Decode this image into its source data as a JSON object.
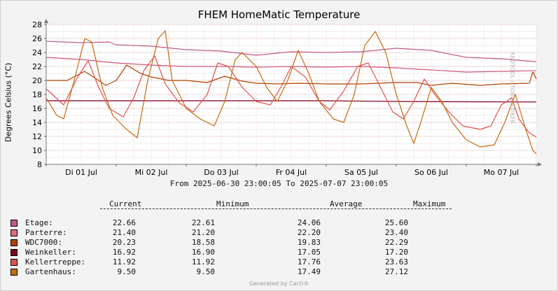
{
  "chart_data": {
    "type": "line",
    "title": "FHEM HomeMatic Temperature",
    "ylabel": "Degrees Celsius (°C)",
    "xlabel": "",
    "ylim": [
      8,
      28
    ],
    "yticks": [
      8,
      10,
      12,
      14,
      16,
      18,
      20,
      22,
      24,
      26,
      28
    ],
    "xlim": [
      0,
      7
    ],
    "xticks": [
      {
        "x": 0.5,
        "label": "Di 01 Jul"
      },
      {
        "x": 1.5,
        "label": "Mi 02 Jul"
      },
      {
        "x": 2.5,
        "label": "Do 03 Jul"
      },
      {
        "x": 3.5,
        "label": "Fr 04 Jul"
      },
      {
        "x": 4.5,
        "label": "Sa 05 Jul"
      },
      {
        "x": 5.5,
        "label": "So 06 Jul"
      },
      {
        "x": 6.5,
        "label": "Mo 07 Jul"
      }
    ],
    "grid": true,
    "range_text": "From 2025-06-30 23:00:05 To 2025-07-07 23:00:05",
    "series": [
      {
        "name": "Etage",
        "color": "#c05a8a",
        "current": "22.66",
        "minimum": "22.61",
        "average": "24.06",
        "maximum": "25.60",
        "points": [
          [
            0,
            25.6
          ],
          [
            0.5,
            25.4
          ],
          [
            0.9,
            25.5
          ],
          [
            1.0,
            25.1
          ],
          [
            1.5,
            24.9
          ],
          [
            2.0,
            24.4
          ],
          [
            2.5,
            24.2
          ],
          [
            3.0,
            23.6
          ],
          [
            3.5,
            24.1
          ],
          [
            4.0,
            24.0
          ],
          [
            4.5,
            24.1
          ],
          [
            5.0,
            24.6
          ],
          [
            5.5,
            24.3
          ],
          [
            6.0,
            23.3
          ],
          [
            6.5,
            23.1
          ],
          [
            7.0,
            22.66
          ]
        ]
      },
      {
        "name": "Parterre",
        "color": "#d05878",
        "current": "21.40",
        "minimum": "21.20",
        "average": "22.20",
        "maximum": "23.40",
        "points": [
          [
            0,
            23.3
          ],
          [
            0.5,
            23.0
          ],
          [
            1.0,
            22.5
          ],
          [
            1.5,
            22.2
          ],
          [
            2.0,
            22.0
          ],
          [
            2.5,
            22.0
          ],
          [
            3.0,
            21.9
          ],
          [
            3.5,
            22.0
          ],
          [
            4.0,
            21.9
          ],
          [
            4.5,
            22.0
          ],
          [
            5.0,
            21.8
          ],
          [
            5.5,
            21.5
          ],
          [
            6.0,
            21.2
          ],
          [
            6.5,
            21.3
          ],
          [
            7.0,
            21.4
          ]
        ]
      },
      {
        "name": "WDC7000:",
        "color": "#b14200",
        "current": "20.23",
        "minimum": "18.58",
        "average": "19.83",
        "maximum": "22.29",
        "points": [
          [
            0,
            20.0
          ],
          [
            0.3,
            20.0
          ],
          [
            0.55,
            21.3
          ],
          [
            0.75,
            20.0
          ],
          [
            0.85,
            19.3
          ],
          [
            1.0,
            20.0
          ],
          [
            1.15,
            22.2
          ],
          [
            1.35,
            21.0
          ],
          [
            1.5,
            20.5
          ],
          [
            1.75,
            20.0
          ],
          [
            2.0,
            20.0
          ],
          [
            2.3,
            19.7
          ],
          [
            2.55,
            20.6
          ],
          [
            2.8,
            19.9
          ],
          [
            3.0,
            19.6
          ],
          [
            3.3,
            19.5
          ],
          [
            3.6,
            19.6
          ],
          [
            4.0,
            19.5
          ],
          [
            4.5,
            19.5
          ],
          [
            5.0,
            19.7
          ],
          [
            5.3,
            19.7
          ],
          [
            5.5,
            19.3
          ],
          [
            5.8,
            19.6
          ],
          [
            6.2,
            19.3
          ],
          [
            6.5,
            19.5
          ],
          [
            6.9,
            19.6
          ],
          [
            6.95,
            21.2
          ],
          [
            7.0,
            20.23
          ]
        ]
      },
      {
        "name": "Weinkeller:",
        "color": "#800020",
        "current": "16.92",
        "minimum": "16.90",
        "average": "17.05",
        "maximum": "17.20",
        "points": [
          [
            0,
            17.1
          ],
          [
            1,
            17.1
          ],
          [
            2,
            17.1
          ],
          [
            3,
            17.1
          ],
          [
            4,
            17.1
          ],
          [
            5,
            17.0
          ],
          [
            6,
            16.95
          ],
          [
            7,
            16.92
          ]
        ]
      },
      {
        "name": "Kellertreppe:",
        "color": "#e35050",
        "current": "11.92",
        "minimum": "11.92",
        "average": "17.76",
        "maximum": "23.63",
        "points": [
          [
            0,
            18.8
          ],
          [
            0.25,
            16.5
          ],
          [
            0.45,
            20.5
          ],
          [
            0.6,
            22.8
          ],
          [
            0.75,
            19.0
          ],
          [
            0.9,
            16.0
          ],
          [
            1.1,
            14.8
          ],
          [
            1.25,
            17.5
          ],
          [
            1.4,
            21.5
          ],
          [
            1.55,
            23.5
          ],
          [
            1.7,
            19.5
          ],
          [
            1.9,
            16.8
          ],
          [
            2.1,
            15.5
          ],
          [
            2.3,
            18.0
          ],
          [
            2.45,
            22.5
          ],
          [
            2.6,
            22.0
          ],
          [
            2.8,
            19.0
          ],
          [
            3.0,
            17.0
          ],
          [
            3.2,
            16.5
          ],
          [
            3.35,
            19.0
          ],
          [
            3.5,
            22.0
          ],
          [
            3.7,
            20.5
          ],
          [
            3.9,
            17.0
          ],
          [
            4.05,
            15.8
          ],
          [
            4.25,
            18.5
          ],
          [
            4.45,
            22.0
          ],
          [
            4.6,
            22.5
          ],
          [
            4.75,
            19.5
          ],
          [
            4.95,
            15.5
          ],
          [
            5.1,
            14.5
          ],
          [
            5.25,
            17.0
          ],
          [
            5.4,
            20.2
          ],
          [
            5.55,
            18.0
          ],
          [
            5.75,
            15.5
          ],
          [
            5.95,
            13.5
          ],
          [
            6.2,
            13.0
          ],
          [
            6.35,
            13.5
          ],
          [
            6.5,
            16.5
          ],
          [
            6.65,
            17.5
          ],
          [
            6.75,
            14.5
          ],
          [
            6.9,
            12.5
          ],
          [
            7.0,
            11.92
          ]
        ]
      },
      {
        "name": "Gartenhaus:",
        "color": "#c66a10",
        "current": "9.50",
        "minimum": "9.50",
        "average": "17.49",
        "maximum": "27.12",
        "points": [
          [
            0,
            17.5
          ],
          [
            0.15,
            15.0
          ],
          [
            0.25,
            14.5
          ],
          [
            0.4,
            20.0
          ],
          [
            0.55,
            26.0
          ],
          [
            0.65,
            25.5
          ],
          [
            0.8,
            19.0
          ],
          [
            0.95,
            15.0
          ],
          [
            1.15,
            13.0
          ],
          [
            1.3,
            11.8
          ],
          [
            1.45,
            20.0
          ],
          [
            1.6,
            26.0
          ],
          [
            1.7,
            27.1
          ],
          [
            1.8,
            20.0
          ],
          [
            2.0,
            16.0
          ],
          [
            2.2,
            14.5
          ],
          [
            2.4,
            13.5
          ],
          [
            2.55,
            17.0
          ],
          [
            2.7,
            23.0
          ],
          [
            2.8,
            24.0
          ],
          [
            3.0,
            22.0
          ],
          [
            3.15,
            19.0
          ],
          [
            3.3,
            17.0
          ],
          [
            3.45,
            20.0
          ],
          [
            3.6,
            24.3
          ],
          [
            3.75,
            21.0
          ],
          [
            3.9,
            17.0
          ],
          [
            4.1,
            14.5
          ],
          [
            4.25,
            14.0
          ],
          [
            4.4,
            18.0
          ],
          [
            4.55,
            25.0
          ],
          [
            4.7,
            27.0
          ],
          [
            4.85,
            24.0
          ],
          [
            5.0,
            18.0
          ],
          [
            5.15,
            13.5
          ],
          [
            5.25,
            11.0
          ],
          [
            5.35,
            14.0
          ],
          [
            5.5,
            19.0
          ],
          [
            5.65,
            17.0
          ],
          [
            5.8,
            14.0
          ],
          [
            6.0,
            11.5
          ],
          [
            6.2,
            10.5
          ],
          [
            6.4,
            10.8
          ],
          [
            6.55,
            14.0
          ],
          [
            6.7,
            18.0
          ],
          [
            6.85,
            13.0
          ],
          [
            6.95,
            10.0
          ],
          [
            7.0,
            9.5
          ]
        ]
      }
    ]
  },
  "legend": {
    "headers": {
      "current": "Current",
      "minimum": "Minimum",
      "average": "Average",
      "maximum": "Maximum"
    },
    "rows": [
      {
        "label": "Etage:",
        "color": "#c05a8a",
        "current": "22.66",
        "minimum": "22.61",
        "average": "24.06",
        "maximum": "25.60"
      },
      {
        "label": "Parterre:",
        "color": "#e06a7c",
        "current": "21.40",
        "minimum": "21.20",
        "average": "22.20",
        "maximum": "23.40"
      },
      {
        "label": "WDC7000:",
        "color": "#b14200",
        "current": "20.23",
        "minimum": "18.58",
        "average": "19.83",
        "maximum": "22.29"
      },
      {
        "label": "Weinkeller:",
        "color": "#800020",
        "current": "16.92",
        "minimum": "16.90",
        "average": "17.05",
        "maximum": "17.20"
      },
      {
        "label": "Kellertreppe:",
        "color": "#e35050",
        "current": "11.92",
        "minimum": "11.92",
        "average": "17.76",
        "maximum": "23.63"
      },
      {
        "label": "Gartenhaus:",
        "color": "#c66a10",
        "current": "9.50",
        "minimum": "9.50",
        "average": "17.49",
        "maximum": "27.12"
      }
    ]
  },
  "watermark": "RRDTOOL / TOBI OETIKER",
  "footer": "Generated by Cacti®"
}
